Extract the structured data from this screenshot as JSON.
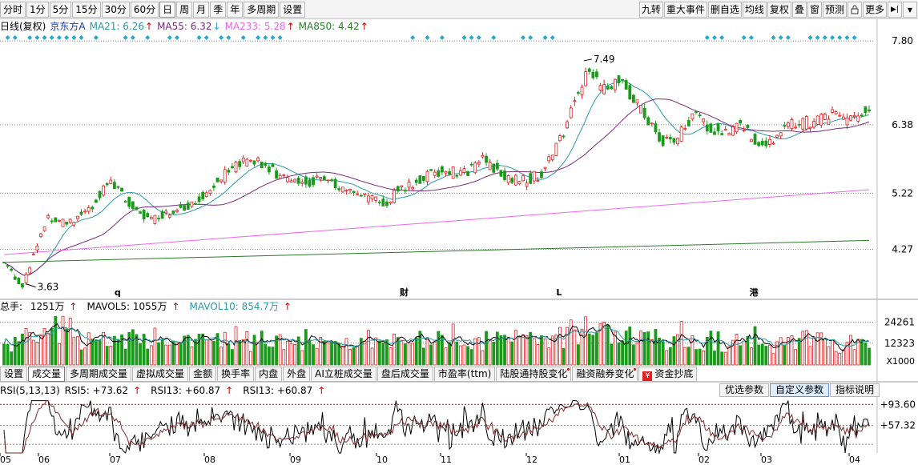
{
  "toolbar": {
    "period_tabs": [
      "分时",
      "1分",
      "5分",
      "15分",
      "30分",
      "60分",
      "日",
      "周",
      "月",
      "季",
      "年",
      "多周期",
      "设置"
    ],
    "active_period": "日",
    "right_tools": [
      "九转",
      "重大事件",
      "删自选",
      "均线",
      "复权",
      "叠",
      "窗",
      "预测",
      "",
      "更多"
    ],
    "icons": [
      "lock-icon",
      "dock-icon",
      "chevron-down-icon"
    ]
  },
  "main_legend": {
    "name": "日线(复权)",
    "stock": "京东方A",
    "ma21": "MA21: 6.26",
    "ma55": "MA55: 6.32",
    "ma233": "MA233: 5.28",
    "ma850": "MA850: 4.42"
  },
  "colors": {
    "up": "#e02020",
    "down": "#1a9a1a",
    "ma21": "#2a9aa8",
    "ma55": "#7a2a7a",
    "ma233": "#ee66ee",
    "ma850": "#2a7a2a",
    "signal": "#2aa8c8",
    "axis_red": "#cc0000"
  },
  "chart_data": [
    {
      "type": "candlestick",
      "price_axis_ticks": [
        7.8,
        6.38,
        5.22,
        4.27
      ],
      "ylim": [
        3.45,
        7.95
      ],
      "annotations": [
        {
          "label": "7.49",
          "value": 7.49,
          "kind": "high"
        },
        {
          "label": "3.63",
          "value": 3.63,
          "kind": "low"
        }
      ],
      "event_markers": [
        "q",
        "财",
        "L",
        "港"
      ],
      "series": [
        {
          "name": "MA21",
          "last": 6.26
        },
        {
          "name": "MA55",
          "last": 6.32
        },
        {
          "name": "MA233",
          "last": 5.28
        },
        {
          "name": "MA850",
          "last": 4.42
        }
      ],
      "x_months": [
        "05",
        "06",
        "07",
        "08",
        "09",
        "10",
        "11",
        "12",
        "01",
        "02",
        "03",
        "04"
      ],
      "path": [
        [
          0,
          4.05
        ],
        [
          10,
          3.65
        ],
        [
          16,
          4.2
        ],
        [
          24,
          4.85
        ],
        [
          34,
          4.7
        ],
        [
          46,
          4.95
        ],
        [
          58,
          5.45
        ],
        [
          70,
          4.95
        ],
        [
          80,
          4.8
        ],
        [
          92,
          4.95
        ],
        [
          104,
          5.05
        ],
        [
          116,
          5.45
        ],
        [
          128,
          5.7
        ],
        [
          134,
          5.85
        ],
        [
          144,
          5.6
        ],
        [
          160,
          5.4
        ],
        [
          172,
          5.45
        ],
        [
          184,
          5.3
        ],
        [
          196,
          5.15
        ],
        [
          206,
          5.05
        ],
        [
          214,
          5.25
        ],
        [
          226,
          5.45
        ],
        [
          238,
          5.6
        ],
        [
          250,
          5.55
        ],
        [
          260,
          5.8
        ],
        [
          268,
          5.6
        ],
        [
          280,
          5.4
        ],
        [
          292,
          5.55
        ],
        [
          302,
          6.1
        ],
        [
          310,
          6.8
        ],
        [
          318,
          7.3
        ],
        [
          326,
          6.95
        ],
        [
          334,
          7.2
        ],
        [
          342,
          6.8
        ],
        [
          350,
          6.4
        ],
        [
          358,
          6.1
        ],
        [
          366,
          6.15
        ],
        [
          374,
          6.55
        ],
        [
          382,
          6.35
        ],
        [
          390,
          6.25
        ],
        [
          400,
          6.35
        ],
        [
          410,
          6.05
        ],
        [
          420,
          6.2
        ],
        [
          430,
          6.45
        ],
        [
          440,
          6.4
        ],
        [
          452,
          6.55
        ],
        [
          462,
          6.45
        ],
        [
          470,
          6.65
        ]
      ]
    },
    {
      "type": "bar",
      "name": "成交量",
      "legend_prefix": "总手:",
      "total": "1251万",
      "mavol5": "MAVOL5: 1055万",
      "mavol10": "MAVOL10: 854.7万",
      "axis_ticks": [
        24261,
        12323
      ],
      "axis_unit": "X1000",
      "ylim": [
        0,
        29000
      ]
    },
    {
      "type": "line",
      "name": "RSI",
      "legend": "RSI(5,13,13)",
      "rsi5": "RSI5: +73.62",
      "rsi13a": "RSI13: +60.87",
      "rsi13b": "RSI13: +60.87",
      "axis_ticks": [
        "+93.60",
        "+57.32"
      ],
      "ylim": [
        10,
        105
      ],
      "ref_lines": [
        93.6,
        57.32,
        25
      ]
    }
  ],
  "indicator_tabs": {
    "items": [
      "设置",
      "成交量",
      "多周期成交量",
      "虚拟成交量",
      "金额",
      "换手率",
      "内盘",
      "外盘",
      "AI立桩成交量",
      "盘后成交量",
      "市盈率(ttm)",
      "陆股通持股变化",
      "融资融券变化",
      "资金抄底"
    ],
    "active": "成交量",
    "dotted": [
      "陆股通持股变化",
      "融资融券变化"
    ]
  },
  "rsi_buttons": {
    "items": [
      "优选参数",
      "自定义参数",
      "指标说明"
    ],
    "active": "自定义参数"
  }
}
